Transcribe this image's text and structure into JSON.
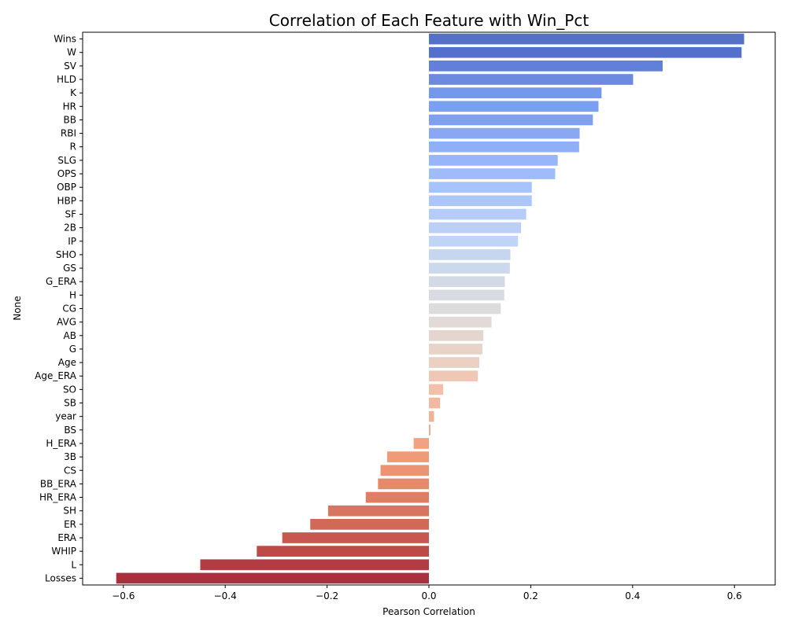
{
  "chart_data": {
    "type": "bar",
    "orientation": "horizontal",
    "title": "Correlation of Each Feature with Win_Pct",
    "xlabel": "Pearson Correlation",
    "ylabel": "None",
    "xlim": [
      -0.68,
      0.68
    ],
    "xticks": [
      -0.6,
      -0.4,
      -0.2,
      0.0,
      0.2,
      0.4,
      0.6
    ],
    "xtick_labels": [
      "−0.6",
      "−0.4",
      "−0.2",
      "0.0",
      "0.2",
      "0.4",
      "0.6"
    ],
    "grid": false,
    "legend": "none",
    "colormap": "coolwarm",
    "categories": [
      "Wins",
      "W",
      "SV",
      "HLD",
      "K",
      "HR",
      "BB",
      "RBI",
      "R",
      "SLG",
      "OPS",
      "OBP",
      "HBP",
      "SF",
      "2B",
      "IP",
      "SHO",
      "GS",
      "G_ERA",
      "H",
      "CG",
      "AVG",
      "AB",
      "G",
      "Age",
      "Age_ERA",
      "SO",
      "SB",
      "year",
      "BS",
      "H_ERA",
      "3B",
      "CS",
      "BB_ERA",
      "HR_ERA",
      "SH",
      "ER",
      "ERA",
      "WHIP",
      "L",
      "Losses"
    ],
    "values": [
      0.619,
      0.614,
      0.459,
      0.401,
      0.339,
      0.333,
      0.322,
      0.296,
      0.295,
      0.253,
      0.248,
      0.202,
      0.202,
      0.191,
      0.181,
      0.175,
      0.16,
      0.159,
      0.149,
      0.148,
      0.141,
      0.123,
      0.107,
      0.105,
      0.099,
      0.096,
      0.028,
      0.022,
      0.01,
      0.003,
      -0.03,
      -0.082,
      -0.095,
      -0.1,
      -0.124,
      -0.198,
      -0.233,
      -0.288,
      -0.338,
      -0.449,
      -0.614
    ],
    "colors": [
      "#5470c8",
      "#5570ca",
      "#6280da",
      "#6b8ae0",
      "#7498eb",
      "#7c9ff1",
      "#809ff1",
      "#89a7f4",
      "#8faff7",
      "#99b5fa",
      "#9fbcfa",
      "#a7c3fb",
      "#acc6fa",
      "#b5ccf9",
      "#bbcff7",
      "#c0d4f5",
      "#c6d6f0",
      "#ccd9ed",
      "#d3dae6",
      "#d8dbe2",
      "#dcdcdc",
      "#e1dad6",
      "#e4d6ce",
      "#e8d3c9",
      "#ecd0c3",
      "#eec7b5",
      "#f1c0ab",
      "#f2b9a1",
      "#f3b196",
      "#f3aa8d",
      "#f2a183",
      "#ef9b79",
      "#eb9372",
      "#e6896c",
      "#e07e63",
      "#d8755f",
      "#d16858",
      "#c65850",
      "#bc4b47",
      "#b13c43",
      "#ab303f"
    ]
  }
}
